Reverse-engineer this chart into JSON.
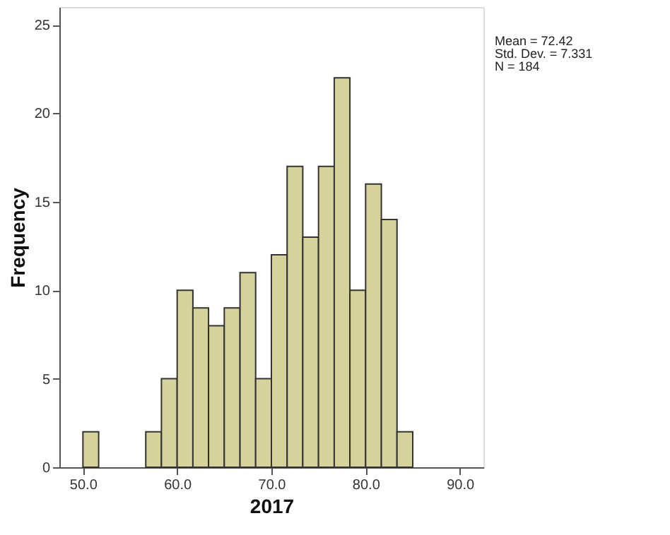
{
  "chart_data": {
    "type": "histogram",
    "xlabel": "2017",
    "ylabel": "Frequency",
    "bins": [
      50,
      51.67,
      53.33,
      55,
      56.67,
      58.33,
      60,
      61.67,
      63.33,
      65,
      66.67,
      68.33,
      70,
      71.67,
      73.33,
      75,
      76.67,
      78.33,
      80,
      81.67,
      83.33,
      85
    ],
    "values": [
      2,
      0,
      0,
      0,
      2,
      5,
      10,
      9,
      8,
      9,
      11,
      5,
      12,
      17,
      13,
      17,
      22,
      10,
      16,
      14,
      2
    ],
    "color": "#d6d29b",
    "xlim": [
      47.5,
      92.5
    ],
    "xticks": [
      {
        "value": 50,
        "label": "50.0"
      },
      {
        "value": 60,
        "label": "60.0"
      },
      {
        "value": 70,
        "label": "70.0"
      },
      {
        "value": 80,
        "label": "80.0"
      },
      {
        "value": 90,
        "label": "90.0"
      }
    ],
    "ylim": [
      0,
      26
    ],
    "yticks": [
      0,
      5,
      10,
      15,
      20,
      25
    ],
    "grid": false,
    "annotations": [
      "Mean = 72.42",
      "Std. Dev. = 7.331",
      "N = 184"
    ]
  }
}
